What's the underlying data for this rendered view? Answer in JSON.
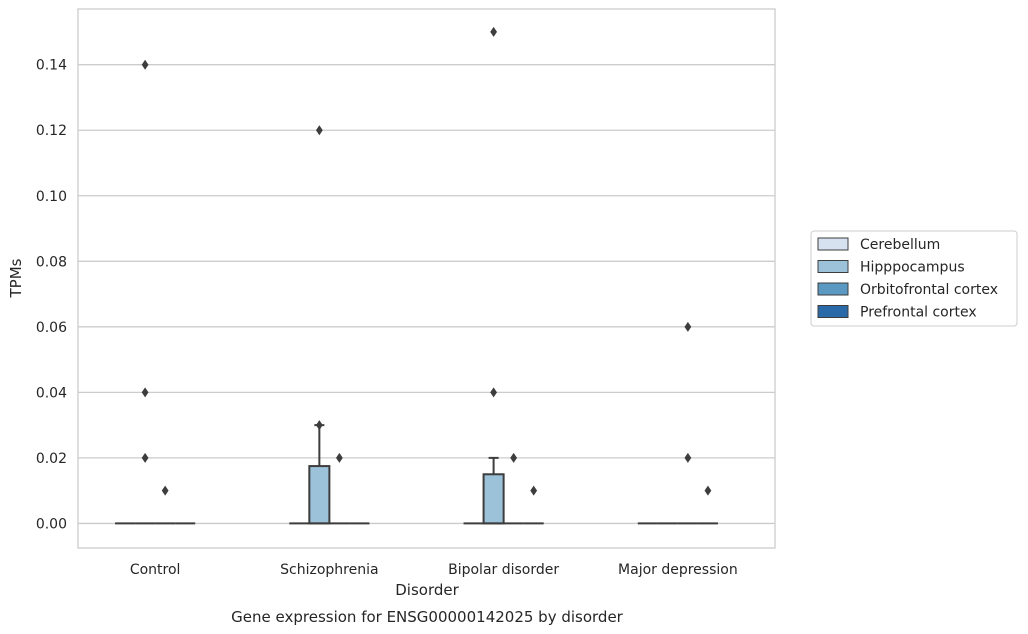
{
  "chart_data": {
    "type": "box",
    "title": "",
    "caption": "Gene expression for ENSG00000142025 by disorder",
    "xlabel": "Disorder",
    "ylabel": "TPMs",
    "ylim": [
      -0.0075,
      0.157
    ],
    "yticks": [
      0.0,
      0.02,
      0.04,
      0.06,
      0.08,
      0.1,
      0.12,
      0.14
    ],
    "yticks_labels": [
      "0.00",
      "0.02",
      "0.04",
      "0.06",
      "0.08",
      "0.10",
      "0.12",
      "0.14"
    ],
    "grid": "horizontal",
    "legend_position": "right",
    "categories": [
      "Control",
      "Schizophrenia",
      "Bipolar disorder",
      "Major depression"
    ],
    "series": [
      {
        "name": "Cerebellum",
        "color": "#d6e2ef",
        "boxes": [
          {
            "q1": 0,
            "median": 0,
            "q3": 0,
            "whisker_low": 0,
            "whisker_high": 0,
            "outliers": []
          },
          {
            "q1": 0,
            "median": 0,
            "q3": 0,
            "whisker_low": 0,
            "whisker_high": 0,
            "outliers": []
          },
          {
            "q1": 0,
            "median": 0,
            "q3": 0,
            "whisker_low": 0,
            "whisker_high": 0,
            "outliers": []
          },
          {
            "q1": 0,
            "median": 0,
            "q3": 0,
            "whisker_low": 0,
            "whisker_high": 0,
            "outliers": []
          }
        ]
      },
      {
        "name": "Hipppocampus",
        "color": "#9cc2da",
        "boxes": [
          {
            "q1": 0,
            "median": 0,
            "q3": 0,
            "whisker_low": 0,
            "whisker_high": 0,
            "outliers": [
              0.02,
              0.04,
              0.14
            ]
          },
          {
            "q1": 0,
            "median": 0,
            "q3": 0.0175,
            "whisker_low": 0,
            "whisker_high": 0.03,
            "outliers": [
              0.03,
              0.12
            ]
          },
          {
            "q1": 0,
            "median": 0,
            "q3": 0.015,
            "whisker_low": 0,
            "whisker_high": 0.02,
            "outliers": [
              0.04,
              0.15
            ]
          },
          {
            "q1": 0,
            "median": 0,
            "q3": 0,
            "whisker_low": 0,
            "whisker_high": 0,
            "outliers": []
          }
        ]
      },
      {
        "name": "Orbitofrontal cortex",
        "color": "#5b98c2",
        "boxes": [
          {
            "q1": 0,
            "median": 0,
            "q3": 0,
            "whisker_low": 0,
            "whisker_high": 0,
            "outliers": [
              0.01
            ]
          },
          {
            "q1": 0,
            "median": 0,
            "q3": 0,
            "whisker_low": 0,
            "whisker_high": 0,
            "outliers": [
              0.02
            ]
          },
          {
            "q1": 0,
            "median": 0,
            "q3": 0,
            "whisker_low": 0,
            "whisker_high": 0,
            "outliers": [
              0.02
            ]
          },
          {
            "q1": 0,
            "median": 0,
            "q3": 0,
            "whisker_low": 0,
            "whisker_high": 0,
            "outliers": [
              0.02,
              0.06
            ]
          }
        ]
      },
      {
        "name": "Prefrontal cortex",
        "color": "#2b6aa8",
        "boxes": [
          {
            "q1": 0,
            "median": 0,
            "q3": 0,
            "whisker_low": 0,
            "whisker_high": 0,
            "outliers": []
          },
          {
            "q1": 0,
            "median": 0,
            "q3": 0,
            "whisker_low": 0,
            "whisker_high": 0,
            "outliers": []
          },
          {
            "q1": 0,
            "median": 0,
            "q3": 0,
            "whisker_low": 0,
            "whisker_high": 0,
            "outliers": [
              0.01
            ]
          },
          {
            "q1": 0,
            "median": 0,
            "q3": 0,
            "whisker_low": 0,
            "whisker_high": 0,
            "outliers": [
              0.01
            ]
          }
        ]
      }
    ]
  }
}
